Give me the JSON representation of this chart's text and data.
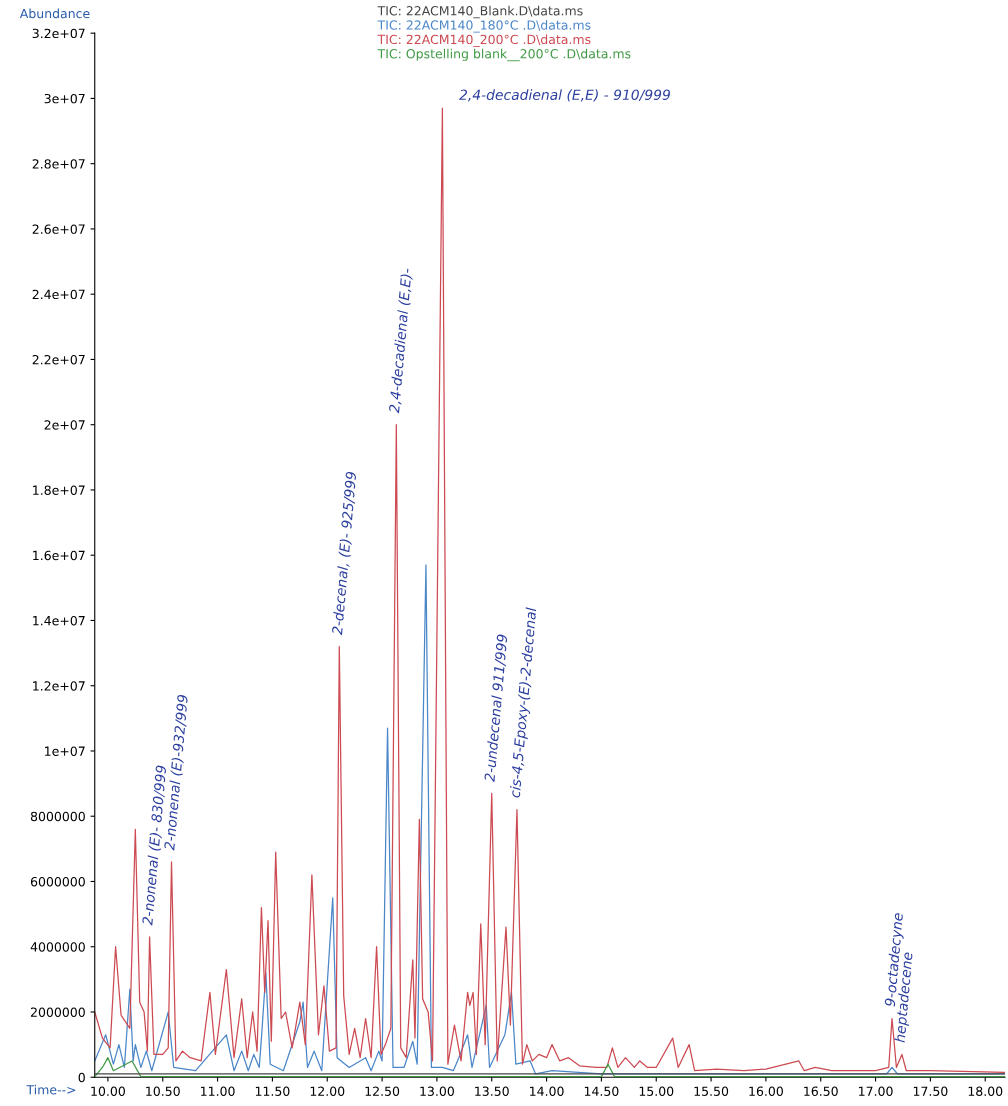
{
  "chart_data": {
    "type": "line",
    "xlabel": "Time-->",
    "ylabel": "Abundance",
    "legend": "top",
    "grid": false,
    "line_style": "solid",
    "xlim": [
      9.88,
      18.18
    ],
    "ylim": [
      0,
      32000000
    ],
    "xticks": [
      {
        "value": 10,
        "label": "10.00"
      },
      {
        "value": 10.5,
        "label": "10.50"
      },
      {
        "value": 11,
        "label": "11.00"
      },
      {
        "value": 11.5,
        "label": "11.50"
      },
      {
        "value": 12,
        "label": "12.00"
      },
      {
        "value": 12.5,
        "label": "12.50"
      },
      {
        "value": 13,
        "label": "13.00"
      },
      {
        "value": 13.5,
        "label": "13.50"
      },
      {
        "value": 14,
        "label": "14.00"
      },
      {
        "value": 14.5,
        "label": "14.50"
      },
      {
        "value": 15,
        "label": "15.00"
      },
      {
        "value": 15.5,
        "label": "15.50"
      },
      {
        "value": 16,
        "label": "16.00"
      },
      {
        "value": 16.5,
        "label": "16.50"
      },
      {
        "value": 17,
        "label": "17.00"
      },
      {
        "value": 17.5,
        "label": "17.50"
      },
      {
        "value": 18,
        "label": "18.00"
      }
    ],
    "yticks": [
      0,
      2000000,
      4000000,
      6000000,
      8000000,
      {
        "value": 10000000,
        "label": "1e+07"
      },
      {
        "value": 12000000,
        "label": "1.2e+07"
      },
      {
        "value": 14000000,
        "label": "1.4e+07"
      },
      {
        "value": 16000000,
        "label": "1.6e+07"
      },
      {
        "value": 18000000,
        "label": "1.8e+07"
      },
      {
        "value": 20000000,
        "label": "2e+07"
      },
      {
        "value": 22000000,
        "label": "2.2e+07"
      },
      {
        "value": 24000000,
        "label": "2.4e+07"
      },
      {
        "value": 26000000,
        "label": "2.6e+07"
      },
      {
        "value": 28000000,
        "label": "2.8e+07"
      },
      {
        "value": 30000000,
        "label": "3e+07"
      },
      {
        "value": 32000000,
        "label": "3.2e+07"
      }
    ],
    "series": [
      {
        "name": "TIC: 22ACM140_Blank.D\\data.ms",
        "color": "#444444",
        "x": [
          9.88,
          12.0,
          18.18
        ],
        "values": [
          100000,
          100000,
          100000
        ]
      },
      {
        "name": "TIC: 22ACM140_180°C .D\\data.ms",
        "color": "#4a86c8",
        "x": [
          9.88,
          9.98,
          10.05,
          10.1,
          10.15,
          10.2,
          10.23,
          10.25,
          10.3,
          10.35,
          10.4,
          10.55,
          10.6,
          10.8,
          11.08,
          11.15,
          11.22,
          11.28,
          11.33,
          11.38,
          11.4,
          11.44,
          11.48,
          11.6,
          11.75,
          11.78,
          11.82,
          11.88,
          11.95,
          12.05,
          12.09,
          12.2,
          12.35,
          12.4,
          12.47,
          12.5,
          12.55,
          12.6,
          12.7,
          12.78,
          12.82,
          12.9,
          12.95,
          13.05,
          13.15,
          13.2,
          13.28,
          13.32,
          13.45,
          13.48,
          13.62,
          13.68,
          13.72,
          13.85,
          13.9,
          14.05,
          14.5,
          17.1,
          17.15,
          17.2,
          18.18
        ],
        "values": [
          500000,
          1300000,
          400000,
          1000000,
          300000,
          2700000,
          500000,
          1000000,
          300000,
          800000,
          200000,
          2000000,
          300000,
          200000,
          1300000,
          200000,
          800000,
          200000,
          700000,
          300000,
          1200000,
          3200000,
          400000,
          200000,
          1700000,
          2300000,
          300000,
          800000,
          200000,
          5500000,
          600000,
          300000,
          600000,
          200000,
          800000,
          500000,
          10700000,
          300000,
          300000,
          1100000,
          400000,
          15700000,
          300000,
          300000,
          200000,
          600000,
          1300000,
          300000,
          2200000,
          300000,
          1300000,
          2600000,
          400000,
          500000,
          100000,
          200000,
          100000,
          100000,
          300000,
          100000,
          100000
        ]
      },
      {
        "name": "TIC: 22ACM140_200°C .D\\data.ms",
        "color": "#cc4a52",
        "x": [
          9.88,
          9.95,
          10.02,
          10.07,
          10.12,
          10.2,
          10.25,
          10.29,
          10.33,
          10.36,
          10.38,
          10.42,
          10.5,
          10.55,
          10.58,
          10.62,
          10.68,
          10.75,
          10.85,
          10.93,
          10.98,
          11.08,
          11.15,
          11.22,
          11.27,
          11.32,
          11.36,
          11.4,
          11.43,
          11.46,
          11.49,
          11.53,
          11.58,
          11.62,
          11.68,
          11.75,
          11.8,
          11.86,
          11.92,
          11.97,
          12.02,
          12.08,
          12.11,
          12.15,
          12.2,
          12.25,
          12.3,
          12.35,
          12.4,
          12.45,
          12.49,
          12.53,
          12.58,
          12.63,
          12.67,
          12.72,
          12.78,
          12.8,
          12.84,
          12.87,
          12.92,
          12.96,
          13.05,
          13.1,
          13.16,
          13.22,
          13.28,
          13.3,
          13.33,
          13.36,
          13.4,
          13.44,
          13.5,
          13.55,
          13.63,
          13.67,
          13.73,
          13.78,
          13.82,
          13.87,
          13.93,
          14.0,
          14.05,
          14.12,
          14.2,
          14.3,
          14.45,
          14.55,
          14.6,
          14.65,
          14.72,
          14.8,
          14.85,
          14.92,
          15.0,
          15.15,
          15.2,
          15.3,
          15.35,
          15.55,
          15.8,
          16.0,
          16.3,
          16.35,
          16.45,
          16.6,
          17.0,
          17.12,
          17.15,
          17.19,
          17.24,
          17.28,
          17.5,
          18.18
        ],
        "values": [
          2000000,
          1200000,
          900000,
          4000000,
          1900000,
          1500000,
          7600000,
          2300000,
          2000000,
          800000,
          4300000,
          700000,
          700000,
          900000,
          6600000,
          500000,
          800000,
          600000,
          500000,
          2600000,
          700000,
          3300000,
          600000,
          2400000,
          600000,
          2000000,
          800000,
          5200000,
          2600000,
          4800000,
          1100000,
          6900000,
          1800000,
          2000000,
          900000,
          2300000,
          1000000,
          6200000,
          1300000,
          2800000,
          800000,
          900000,
          13200000,
          2500000,
          700000,
          1500000,
          600000,
          1800000,
          600000,
          4000000,
          700000,
          1000000,
          1500000,
          20000000,
          900000,
          600000,
          3600000,
          1200000,
          7900000,
          2400000,
          2000000,
          500000,
          29700000,
          400000,
          1600000,
          500000,
          2600000,
          2200000,
          2600000,
          700000,
          4700000,
          1000000,
          8700000,
          500000,
          4600000,
          1600000,
          8200000,
          400000,
          1000000,
          500000,
          700000,
          600000,
          1000000,
          500000,
          600000,
          350000,
          300000,
          300000,
          900000,
          300000,
          600000,
          300000,
          500000,
          300000,
          300000,
          1200000,
          300000,
          1000000,
          200000,
          250000,
          200000,
          250000,
          500000,
          200000,
          300000,
          200000,
          200000,
          300000,
          1800000,
          300000,
          700000,
          200000,
          200000,
          150000
        ]
      },
      {
        "name": "TIC: Opstelling blank__200°C .D\\data.ms",
        "color": "#3f9a45",
        "x": [
          9.88,
          9.95,
          10.0,
          10.05,
          10.22,
          10.3,
          10.5,
          11.7,
          14.5,
          14.56,
          14.62,
          18.18
        ],
        "values": [
          20000,
          300000,
          600000,
          200000,
          500000,
          20000,
          20000,
          20000,
          20000,
          400000,
          20000,
          20000
        ]
      }
    ],
    "annotations": [
      {
        "text": "2-nonenal (E)- 830/999",
        "x": 10.38,
        "y": 4300000
      },
      {
        "text": "2-nonenal (E)-932/999",
        "x": 10.58,
        "y": 6600000
      },
      {
        "text": "2-decenal, (E)- 925/999",
        "x": 12.11,
        "y": 13200000
      },
      {
        "text": "2,4-decadienal (E,E)-",
        "x": 12.63,
        "y": 20000000
      },
      {
        "text": "2,4-decadienal (E,E) - 910/999",
        "x": 13.05,
        "y": 29700000
      },
      {
        "text": "2-undecenal 911/999",
        "x": 13.5,
        "y": 8700000
      },
      {
        "text": "cis-4,5-Epoxy-(E)-2-decenal",
        "x": 13.73,
        "y": 8200000
      },
      {
        "text": "9-octadecyne",
        "x": 17.15,
        "y": 1800000
      },
      {
        "text": "heptadecene",
        "x": 17.24,
        "y": 700000
      }
    ]
  }
}
